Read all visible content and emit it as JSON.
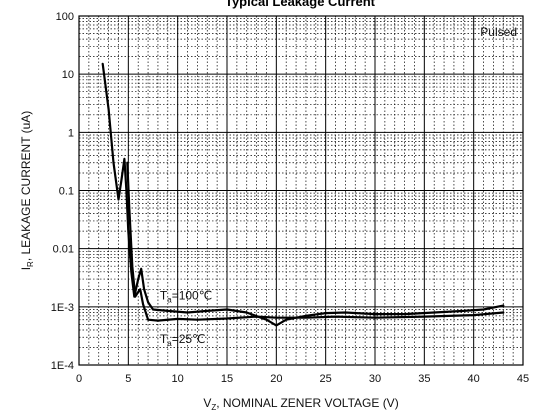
{
  "chart_data": {
    "type": "line",
    "title": "Typical Leakage Current",
    "xlabel": {
      "main": "V",
      "sub": "Z",
      "rest": ", NOMINAL ZENER VOLTAGE (V)"
    },
    "ylabel": {
      "main": "I",
      "sub": "R",
      "rest": ", LEAKAGE CURRENT (uA)"
    },
    "xlim": [
      0,
      45
    ],
    "ylim": [
      0.0001,
      100
    ],
    "yscale": "log",
    "x_ticks": [
      {
        "value": 0,
        "label": "0"
      },
      {
        "value": 5,
        "label": "5"
      },
      {
        "value": 10,
        "label": "10"
      },
      {
        "value": 15,
        "label": "15"
      },
      {
        "value": 20,
        "label": "20"
      },
      {
        "value": 25,
        "label": "25"
      },
      {
        "value": 30,
        "label": "30"
      },
      {
        "value": 35,
        "label": "35"
      },
      {
        "value": 40,
        "label": "40"
      },
      {
        "value": 45,
        "label": "45"
      }
    ],
    "y_ticks": [
      {
        "value": 100,
        "label": "100"
      },
      {
        "value": 10,
        "label": "10"
      },
      {
        "value": 1,
        "label": "1"
      },
      {
        "value": 0.1,
        "label": "0.1"
      },
      {
        "value": 0.01,
        "label": "0.01"
      },
      {
        "value": 0.001,
        "label": "1E-3"
      },
      {
        "value": 0.0001,
        "label": "1E-4"
      }
    ],
    "grid": true,
    "note": "Pulsed",
    "series": [
      {
        "name": "",
        "annotation": {
          "main": "T",
          "sub": "a",
          "rest": "=100℃"
        },
        "points": [
          [
            2.4,
            15
          ],
          [
            3.0,
            2.5
          ],
          [
            3.5,
            0.3
          ],
          [
            4.0,
            0.07
          ],
          [
            4.3,
            0.15
          ],
          [
            4.6,
            0.35
          ],
          [
            4.8,
            0.1
          ],
          [
            5.0,
            0.02
          ],
          [
            5.3,
            0.004
          ],
          [
            5.6,
            0.0015
          ],
          [
            6.0,
            0.003
          ],
          [
            6.3,
            0.0045
          ],
          [
            6.6,
            0.002
          ],
          [
            7.0,
            0.0012
          ],
          [
            7.5,
            0.0009
          ],
          [
            9,
            0.00085
          ],
          [
            11,
            0.0008
          ],
          [
            13,
            0.00085
          ],
          [
            15,
            0.0009
          ],
          [
            17,
            0.0008
          ],
          [
            19,
            0.0006
          ],
          [
            20,
            0.00048
          ],
          [
            21,
            0.0006
          ],
          [
            23,
            0.0007
          ],
          [
            25,
            0.00078
          ],
          [
            27,
            0.0008
          ],
          [
            30,
            0.00075
          ],
          [
            33,
            0.00075
          ],
          [
            36,
            0.0008
          ],
          [
            39,
            0.00085
          ],
          [
            41,
            0.0009
          ],
          [
            43,
            0.00105
          ]
        ]
      },
      {
        "name": "",
        "annotation": {
          "main": "T",
          "sub": "a",
          "rest": "=25℃"
        },
        "points": [
          [
            4.9,
            0.3
          ],
          [
            5.1,
            0.05
          ],
          [
            5.4,
            0.005
          ],
          [
            5.7,
            0.0015
          ],
          [
            6.0,
            0.0018
          ],
          [
            6.2,
            0.002
          ],
          [
            6.5,
            0.0011
          ],
          [
            7.0,
            0.0006
          ],
          [
            8,
            0.00058
          ],
          [
            10,
            0.00062
          ],
          [
            12,
            0.0006
          ],
          [
            15,
            0.00063
          ],
          [
            18,
            0.00068
          ],
          [
            20,
            0.00065
          ],
          [
            23,
            0.00065
          ],
          [
            26,
            0.00068
          ],
          [
            30,
            0.00065
          ],
          [
            35,
            0.00068
          ],
          [
            40,
            0.00072
          ],
          [
            43,
            0.0008
          ]
        ]
      }
    ]
  }
}
